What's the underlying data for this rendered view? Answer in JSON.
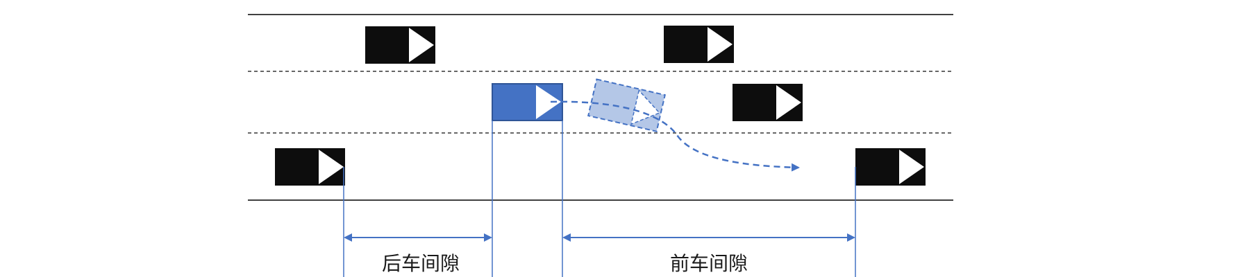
{
  "labels": {
    "rear_gap": "后车间隙",
    "front_gap": "前车间隙"
  },
  "colors": {
    "road_line": "#000000",
    "lane_divider": "#333333",
    "vehicle_body": "#0d0d0d",
    "ego_vehicle": "#4472c4",
    "ego_border": "#2f5597",
    "ghost_vehicle": "#b4c7e7",
    "arrow_glyph": "#ffffff",
    "annotation": "#4472c4"
  },
  "icons": {
    "vehicle": "vehicle-icon",
    "ego_vehicle": "ego-vehicle-icon",
    "ghost_vehicle": "ghost-vehicle-icon",
    "trajectory": "lane-change-trajectory-arrow"
  }
}
